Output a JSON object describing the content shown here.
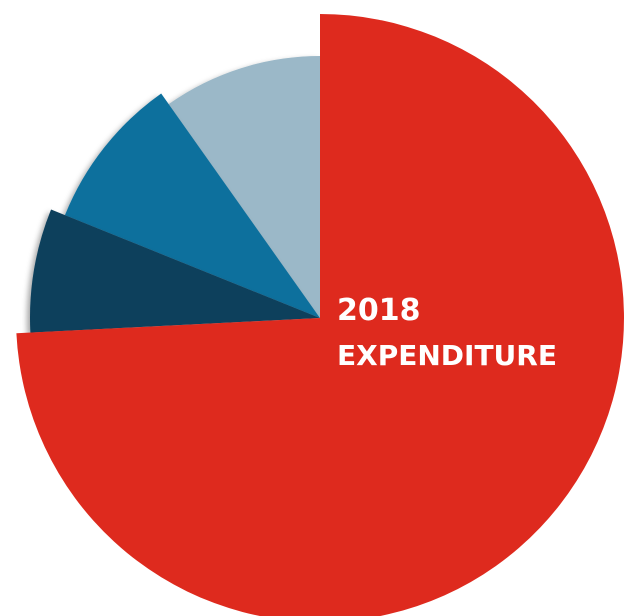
{
  "chart_data": {
    "type": "pie",
    "title_line1": "2018",
    "title_line2": "EXPENDITURE",
    "slices": [
      {
        "value": 74.2,
        "color": "#de2a1e"
      },
      {
        "value": 6.9,
        "color": "#0b3f5b"
      },
      {
        "value": 9.1,
        "color": "#0d6f9d"
      },
      {
        "value": 9.8,
        "color": "#9bb8c8"
      }
    ]
  }
}
